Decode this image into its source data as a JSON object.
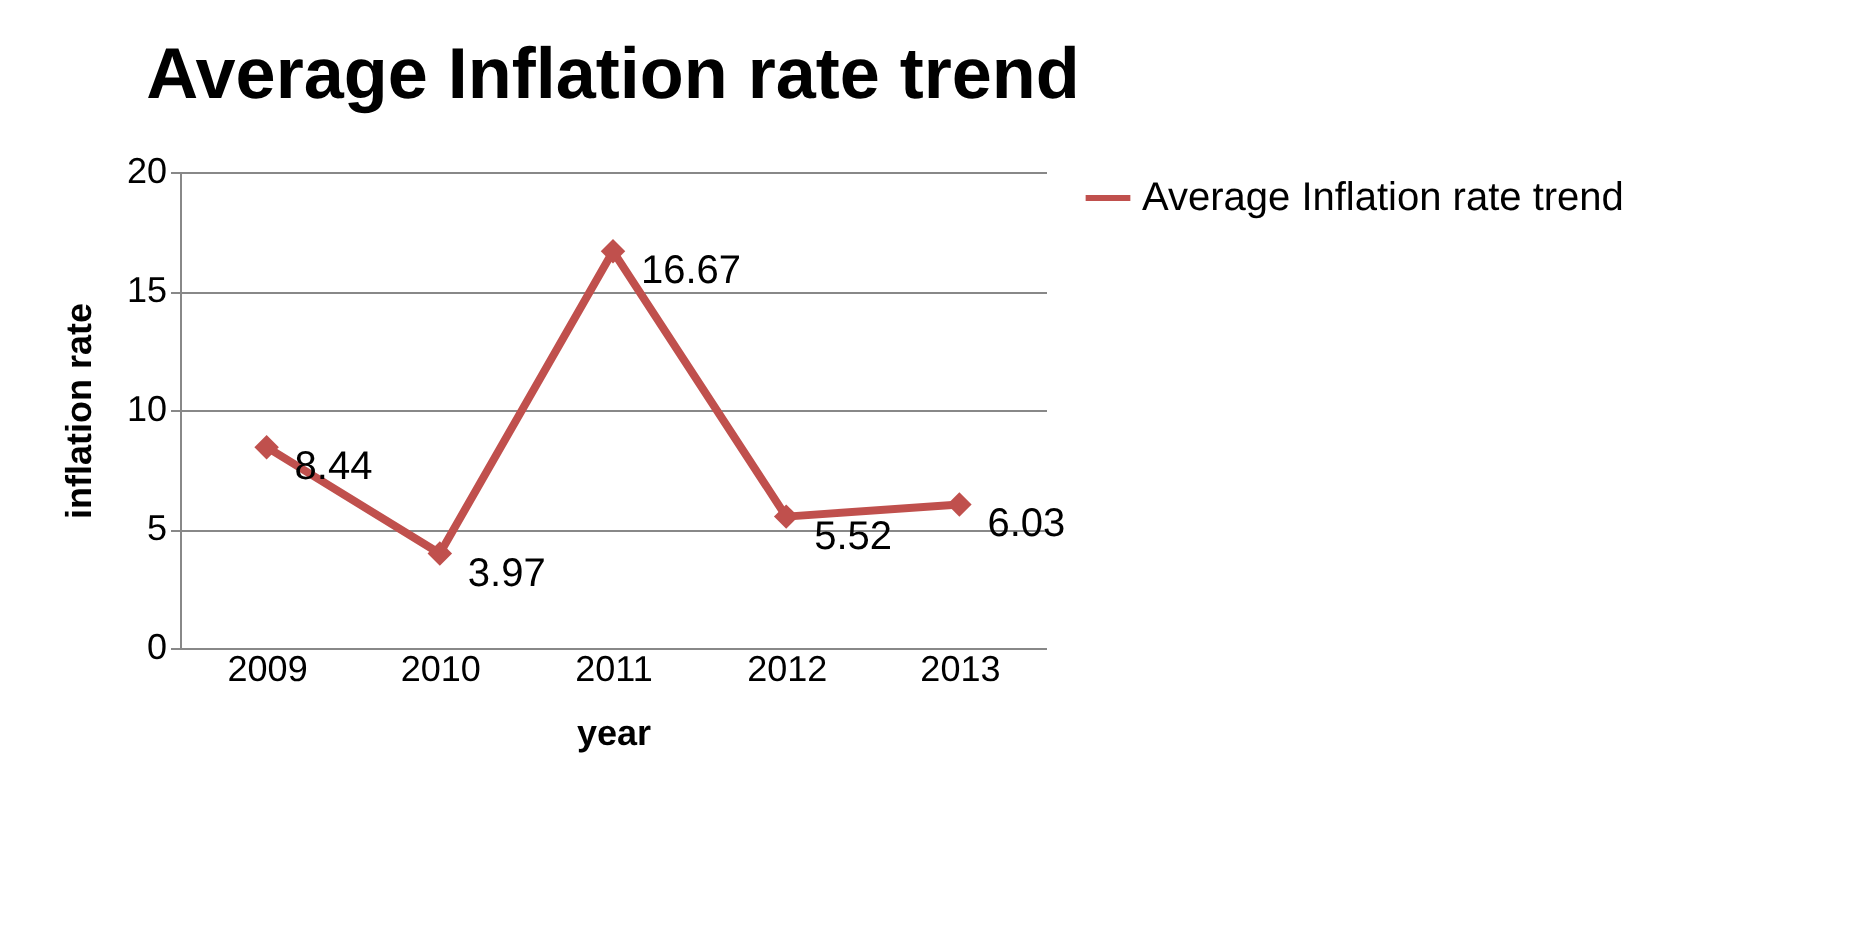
{
  "chart_data": {
    "type": "line",
    "title": "Average Inflation rate trend",
    "xlabel": "year",
    "ylabel": "inflation rate",
    "categories": [
      "2009",
      "2010",
      "2011",
      "2012",
      "2013"
    ],
    "series": [
      {
        "name": "Average Inflation rate trend",
        "color": "#c0504d",
        "values": [
          8.44,
          3.97,
          16.67,
          5.52,
          6.03
        ]
      }
    ],
    "ylim": [
      0,
      20
    ],
    "yticks": [
      0,
      5,
      10,
      15,
      20
    ],
    "grid": "y",
    "legend": "right",
    "marker": "diamond",
    "line_style": "solid",
    "data_labels": true
  }
}
